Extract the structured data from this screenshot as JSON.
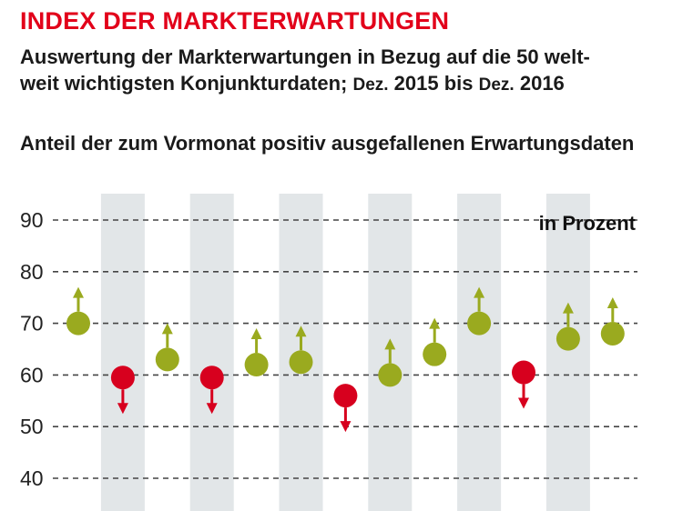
{
  "header": {
    "title": "INDEX DER MARKTERWARTUNGEN",
    "subtitle_line1": "Auswertung der Markterwartungen in Bezug auf die 50 welt-",
    "subtitle_line2_main": "weit wichtigsten Konjunkturdaten;",
    "subtitle_line2_small_a": "Dez.",
    "subtitle_line2_mid": "2015 bis",
    "subtitle_line2_small_b": "Dez.",
    "subtitle_line2_end": "2016",
    "chart_subtitle": "Anteil der zum Vormonat positiv ausgefallenen Erwartungsdaten"
  },
  "chart_data": {
    "type": "scatter",
    "title": "INDEX DER MARKTERWARTUNGEN",
    "unit_label": "in Prozent",
    "ylim": [
      40,
      90
    ],
    "y_ticks": [
      40,
      50,
      60,
      70,
      80,
      90
    ],
    "grid": true,
    "values": [
      70,
      59.5,
      63,
      59.5,
      62,
      62.5,
      56,
      60,
      64,
      70,
      60.5,
      67,
      68
    ],
    "directions": [
      "up",
      "down",
      "up",
      "down",
      "up",
      "up",
      "down",
      "up",
      "up",
      "up",
      "down",
      "up",
      "up"
    ],
    "colors": {
      "up": "#9aaa1f",
      "down": "#d7001e",
      "band": "#e2e6e8",
      "grid": "#444444"
    }
  }
}
